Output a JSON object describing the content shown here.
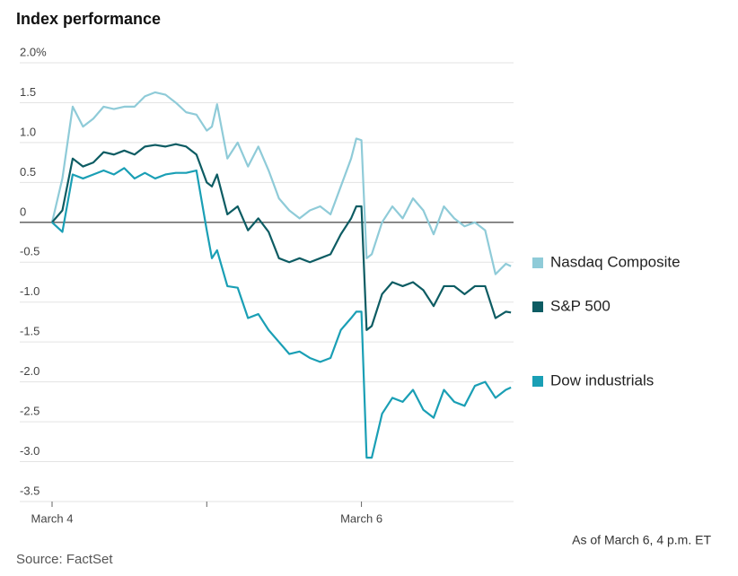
{
  "chart_data": {
    "type": "line",
    "title": "Index performance",
    "source": "Source: FactSet",
    "note": "As of March 6, 4 p.m. ET",
    "x": [
      0,
      2,
      4,
      6,
      8,
      10,
      12,
      14,
      16,
      18,
      20,
      22,
      24,
      26,
      28,
      30,
      31,
      32,
      34,
      36,
      38,
      40,
      42,
      44,
      46,
      48,
      50,
      52,
      54,
      56,
      58,
      59,
      60,
      61,
      62,
      64,
      66,
      68,
      70,
      72,
      74,
      76,
      78,
      80,
      82,
      84,
      86,
      88,
      89
    ],
    "xlim": [
      0,
      89.5
    ],
    "xticks": [
      {
        "value": 0,
        "label": "March 4"
      },
      {
        "value": 30,
        "label": null
      },
      {
        "value": 60,
        "label": "March 6"
      }
    ],
    "ylim": [
      -3.5,
      2
    ],
    "yticks": [
      {
        "value": 2,
        "label": "2.0%"
      },
      1.5,
      {
        "value": 1,
        "label": "1.0"
      },
      0.5,
      0,
      -0.5,
      {
        "value": -1,
        "label": "-1.0"
      },
      -1.5,
      {
        "value": -2,
        "label": "-2.0"
      },
      -2.5,
      {
        "value": -3,
        "label": "-3.0"
      },
      -3.5
    ],
    "grid": true,
    "series": [
      {
        "name": "Nasdaq Composite",
        "color": "#8fcbd8",
        "values": [
          0,
          0.55,
          1.45,
          1.2,
          1.3,
          1.45,
          1.42,
          1.45,
          1.45,
          1.58,
          1.63,
          1.6,
          1.5,
          1.38,
          1.35,
          1.15,
          1.2,
          1.48,
          0.8,
          1.0,
          0.7,
          0.95,
          0.65,
          0.3,
          0.15,
          0.05,
          0.15,
          0.2,
          0.1,
          0.45,
          0.8,
          1.05,
          1.03,
          -0.45,
          -0.4,
          0.0,
          0.2,
          0.05,
          0.3,
          0.15,
          -0.15,
          0.2,
          0.05,
          -0.05,
          0.0,
          -0.1,
          -0.65,
          -0.52,
          -0.55
        ]
      },
      {
        "name": "S&P 500",
        "color": "#0d5c63",
        "values": [
          0,
          0.15,
          0.8,
          0.7,
          0.75,
          0.88,
          0.85,
          0.9,
          0.85,
          0.95,
          0.97,
          0.95,
          0.98,
          0.95,
          0.85,
          0.5,
          0.45,
          0.6,
          0.1,
          0.2,
          -0.1,
          0.05,
          -0.12,
          -0.45,
          -0.5,
          -0.45,
          -0.5,
          -0.45,
          -0.4,
          -0.15,
          0.05,
          0.2,
          0.2,
          -1.35,
          -1.3,
          -0.9,
          -0.75,
          -0.8,
          -0.75,
          -0.85,
          -1.05,
          -0.8,
          -0.8,
          -0.9,
          -0.8,
          -0.8,
          -1.2,
          -1.12,
          -1.13
        ]
      },
      {
        "name": "Dow industrials",
        "color": "#1a9fb5",
        "values": [
          0,
          -0.12,
          0.6,
          0.55,
          0.6,
          0.65,
          0.6,
          0.68,
          0.55,
          0.62,
          0.55,
          0.6,
          0.62,
          0.62,
          0.65,
          -0.1,
          -0.45,
          -0.35,
          -0.8,
          -0.82,
          -1.2,
          -1.15,
          -1.35,
          -1.5,
          -1.65,
          -1.62,
          -1.7,
          -1.75,
          -1.7,
          -1.35,
          -1.2,
          -1.12,
          -1.12,
          -2.95,
          -2.95,
          -2.4,
          -2.2,
          -2.25,
          -2.1,
          -2.35,
          -2.45,
          -2.1,
          -2.25,
          -2.3,
          -2.05,
          -2.0,
          -2.2,
          -2.1,
          -2.07
        ]
      }
    ]
  }
}
